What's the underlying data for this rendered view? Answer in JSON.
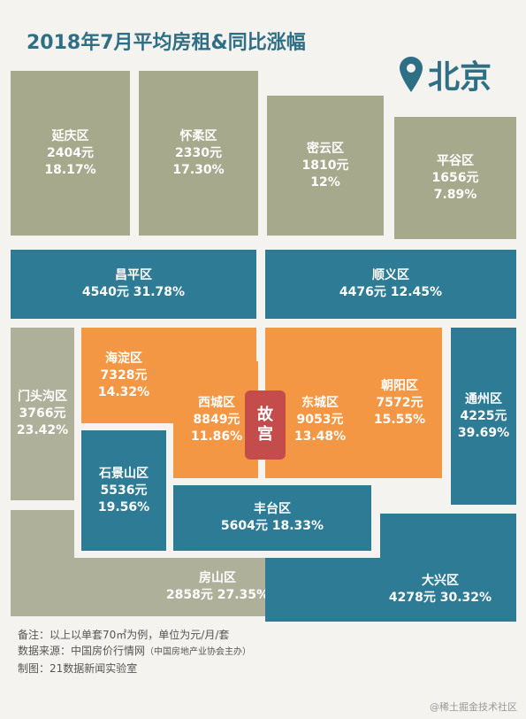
{
  "title": "2018年7月平均房租&同比涨幅",
  "city": {
    "name": "北京",
    "icon": "map-pin-icon"
  },
  "colors": {
    "outer": "#a7a98d",
    "middle": "#2e7b96",
    "inner": "#f49744",
    "center": "#c44d4c",
    "text": "#2f6f86"
  },
  "districts": [
    {
      "name": "延庆区",
      "rent": "2404元",
      "change": "18.17%"
    },
    {
      "name": "怀柔区",
      "rent": "2330元",
      "change": "17.30%"
    },
    {
      "name": "密云区",
      "rent": "1810元",
      "change": "12%"
    },
    {
      "name": "平谷区",
      "rent": "1656元",
      "change": "7.89%"
    },
    {
      "name": "昌平区",
      "line": "4540元 31.78%"
    },
    {
      "name": "顺义区",
      "line": "4476元 12.45%"
    },
    {
      "name": "门头沟区",
      "rent": "3766元",
      "change": "23.42%"
    },
    {
      "name": "海淀区",
      "rent": "7328元",
      "change": "14.32%"
    },
    {
      "name": "西城区",
      "rent": "8849元",
      "change": "11.86%"
    },
    {
      "name": "东城区",
      "rent": "9053元",
      "change": "13.48%"
    },
    {
      "name": "朝阳区",
      "rent": "7572元",
      "change": "15.55%"
    },
    {
      "name": "通州区",
      "rent": "4225元",
      "change": "39.69%"
    },
    {
      "name": "石景山区",
      "rent": "5536元",
      "change": "19.56%"
    },
    {
      "name": "丰台区",
      "line": "5604元 18.33%"
    },
    {
      "name": "房山区",
      "line": "2858元 27.35%"
    },
    {
      "name": "大兴区",
      "line": "4278元 30.32%"
    }
  ],
  "center": {
    "line1": "故",
    "line2": "宫"
  },
  "notes": {
    "line1": "备注：以上以单套70㎡为例，单位为元/月/套",
    "line2_main": "数据来源：中国房价行情网",
    "line2_sub": "（中国房地产业协会主办）",
    "line3": "制图：21数据新闻实验室"
  },
  "watermark": "@稀土掘金技术社区"
}
